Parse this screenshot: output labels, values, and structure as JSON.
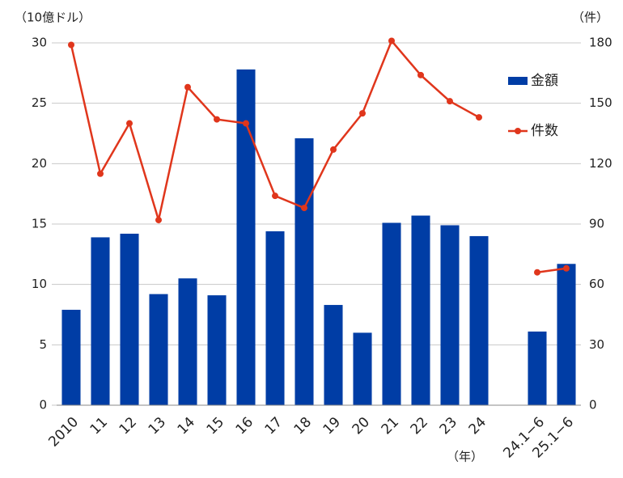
{
  "chart_data": {
    "type": "bar",
    "y_label": "（10億ドル）",
    "y2_label": "（件）",
    "x_label": "（年）",
    "categories": [
      "2010",
      "11",
      "12",
      "13",
      "14",
      "15",
      "16",
      "17",
      "18",
      "19",
      "20",
      "21",
      "22",
      "23",
      "24",
      null,
      "24.1−6",
      "25.1−6"
    ],
    "series": [
      {
        "name": "金額",
        "type": "bar",
        "color": "#003da5",
        "values": [
          7.9,
          13.9,
          14.2,
          9.2,
          10.5,
          9.1,
          27.8,
          14.4,
          22.1,
          8.3,
          6.0,
          15.1,
          15.7,
          14.9,
          14.0,
          null,
          6.1,
          11.7
        ]
      },
      {
        "name": "件数",
        "type": "line",
        "axis": "y2",
        "color": "#e0361c",
        "values": [
          179,
          115,
          140,
          92,
          158,
          142,
          140,
          104,
          98,
          127,
          145,
          181,
          164,
          151,
          143,
          null,
          66,
          68
        ]
      }
    ],
    "ylim": [
      0,
      30
    ],
    "yticks": [
      0,
      5,
      10,
      15,
      20,
      25,
      30
    ],
    "y2lim": [
      0,
      180
    ],
    "y2ticks": [
      0,
      30,
      60,
      90,
      120,
      150,
      180
    ],
    "grid": true,
    "legend": "upper right"
  }
}
